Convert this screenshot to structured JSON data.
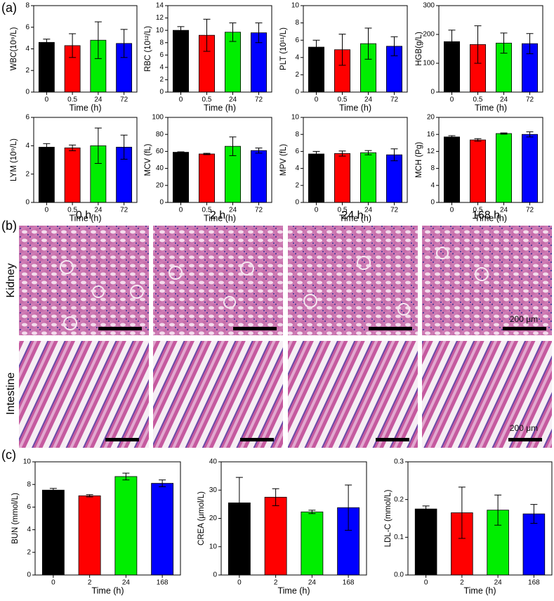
{
  "panel_labels": [
    "(a)",
    "(b)",
    "(c)"
  ],
  "histology": {
    "columns": [
      "0 h",
      "2 h",
      "24 h",
      "168 h"
    ],
    "rows": [
      "Kidney",
      "Intestine"
    ],
    "scale_bar": "200 μm"
  },
  "chart_data": [
    {
      "type": "bar",
      "ylabel": "WBC(10⁹/L)",
      "xlabel": "Time (h)",
      "categories": [
        "0",
        "0.5",
        "24",
        "72"
      ],
      "values": [
        4.6,
        4.3,
        4.8,
        4.5
      ],
      "errors": [
        0.3,
        1.1,
        1.7,
        1.3
      ],
      "colors": [
        "#000000",
        "#ff0000",
        "#00ee00",
        "#0000ff"
      ],
      "ylim": [
        0,
        8
      ],
      "yticks": [
        0,
        2,
        4,
        6,
        8
      ]
    },
    {
      "type": "bar",
      "ylabel": "RBC (10¹²/L)",
      "xlabel": "Time (h)",
      "categories": [
        "0",
        "0.5",
        "24",
        "72"
      ],
      "values": [
        10.0,
        9.2,
        9.7,
        9.6
      ],
      "errors": [
        0.6,
        2.6,
        1.5,
        1.6
      ],
      "colors": [
        "#000000",
        "#ff0000",
        "#00ee00",
        "#0000ff"
      ],
      "ylim": [
        0,
        14
      ],
      "yticks": [
        0,
        2,
        4,
        6,
        8,
        10,
        12,
        14
      ]
    },
    {
      "type": "bar",
      "ylabel": "PLT (10¹¹/L)",
      "xlabel": "Time (h)",
      "categories": [
        "0",
        "0.5",
        "24",
        "72"
      ],
      "values": [
        5.2,
        4.9,
        5.6,
        5.3
      ],
      "errors": [
        0.8,
        1.8,
        1.8,
        1.1
      ],
      "colors": [
        "#000000",
        "#ff0000",
        "#00ee00",
        "#0000ff"
      ],
      "ylim": [
        0,
        10
      ],
      "yticks": [
        0,
        2,
        4,
        6,
        8,
        10
      ]
    },
    {
      "type": "bar",
      "ylabel": "HGB(g/L)",
      "xlabel": "Time (h)",
      "categories": [
        "0",
        "0.5",
        "24",
        "72"
      ],
      "values": [
        175,
        165,
        170,
        168
      ],
      "errors": [
        40,
        65,
        35,
        35
      ],
      "colors": [
        "#000000",
        "#ff0000",
        "#00ee00",
        "#0000ff"
      ],
      "ylim": [
        0,
        300
      ],
      "yticks": [
        0,
        100,
        200,
        300
      ]
    },
    {
      "type": "bar",
      "ylabel": "LYM (10⁹/L)",
      "xlabel": "Time (h)",
      "categories": [
        "0",
        "0.5",
        "24",
        "72"
      ],
      "values": [
        3.9,
        3.85,
        4.0,
        3.9
      ],
      "errors": [
        0.25,
        0.2,
        1.25,
        0.85
      ],
      "colors": [
        "#000000",
        "#ff0000",
        "#00ee00",
        "#0000ff"
      ],
      "ylim": [
        0,
        6
      ],
      "yticks": [
        0,
        2,
        4,
        6
      ]
    },
    {
      "type": "bar",
      "ylabel": "MCV (fL)",
      "xlabel": "Time (h)",
      "categories": [
        "0",
        "0.5",
        "24",
        "72"
      ],
      "values": [
        59,
        57,
        66,
        61
      ],
      "errors": [
        0.5,
        0.8,
        11,
        3
      ],
      "colors": [
        "#000000",
        "#ff0000",
        "#00ee00",
        "#0000ff"
      ],
      "ylim": [
        0,
        100
      ],
      "yticks": [
        0,
        20,
        40,
        60,
        80,
        100
      ]
    },
    {
      "type": "bar",
      "ylabel": "MPV (fL)",
      "xlabel": "Time (h)",
      "categories": [
        "0",
        "0.5",
        "24",
        "72"
      ],
      "values": [
        5.7,
        5.75,
        5.85,
        5.6
      ],
      "errors": [
        0.3,
        0.3,
        0.25,
        0.7
      ],
      "colors": [
        "#000000",
        "#ff0000",
        "#00ee00",
        "#0000ff"
      ],
      "ylim": [
        0,
        10
      ],
      "yticks": [
        0,
        2,
        4,
        6,
        8,
        10
      ]
    },
    {
      "type": "bar",
      "ylabel": "MCH (Pg)",
      "xlabel": "Time (h)",
      "categories": [
        "0",
        "0.5",
        "24",
        "72"
      ],
      "values": [
        15.4,
        14.7,
        16.2,
        16.0
      ],
      "errors": [
        0.3,
        0.3,
        0.15,
        0.6
      ],
      "colors": [
        "#000000",
        "#ff0000",
        "#00ee00",
        "#0000ff"
      ],
      "ylim": [
        0,
        20
      ],
      "yticks": [
        0,
        4,
        8,
        12,
        16,
        20
      ]
    },
    {
      "type": "bar",
      "ylabel": "BUN (mmol/L)",
      "xlabel": "Time (h)",
      "categories": [
        "0",
        "2",
        "24",
        "168"
      ],
      "values": [
        7.5,
        7.0,
        8.7,
        8.1
      ],
      "errors": [
        0.15,
        0.1,
        0.3,
        0.3
      ],
      "colors": [
        "#000000",
        "#ff0000",
        "#00ee00",
        "#0000ff"
      ],
      "ylim": [
        0,
        10
      ],
      "yticks": [
        0,
        2,
        4,
        6,
        8,
        10
      ]
    },
    {
      "type": "bar",
      "ylabel": "CREA (μmol/L)",
      "xlabel": "Time (h)",
      "categories": [
        "0",
        "2",
        "24",
        "168"
      ],
      "values": [
        25.5,
        27.5,
        22.3,
        23.8
      ],
      "errors": [
        9,
        3,
        0.6,
        8
      ],
      "colors": [
        "#000000",
        "#ff0000",
        "#00ee00",
        "#0000ff"
      ],
      "ylim": [
        0,
        40
      ],
      "yticks": [
        0,
        10,
        20,
        30,
        40
      ]
    },
    {
      "type": "bar",
      "ylabel": "LDL-C (mmol/L)",
      "xlabel": "Time (h)",
      "categories": [
        "0",
        "2",
        "24",
        "168"
      ],
      "values": [
        0.175,
        0.165,
        0.172,
        0.162
      ],
      "errors": [
        0.008,
        0.068,
        0.04,
        0.025
      ],
      "colors": [
        "#000000",
        "#ff0000",
        "#00ee00",
        "#0000ff"
      ],
      "ylim": [
        0,
        0.3
      ],
      "yticks": [
        {
          "value": 0,
          "label": "0.0"
        },
        0.1,
        0.2,
        0.3
      ]
    }
  ]
}
